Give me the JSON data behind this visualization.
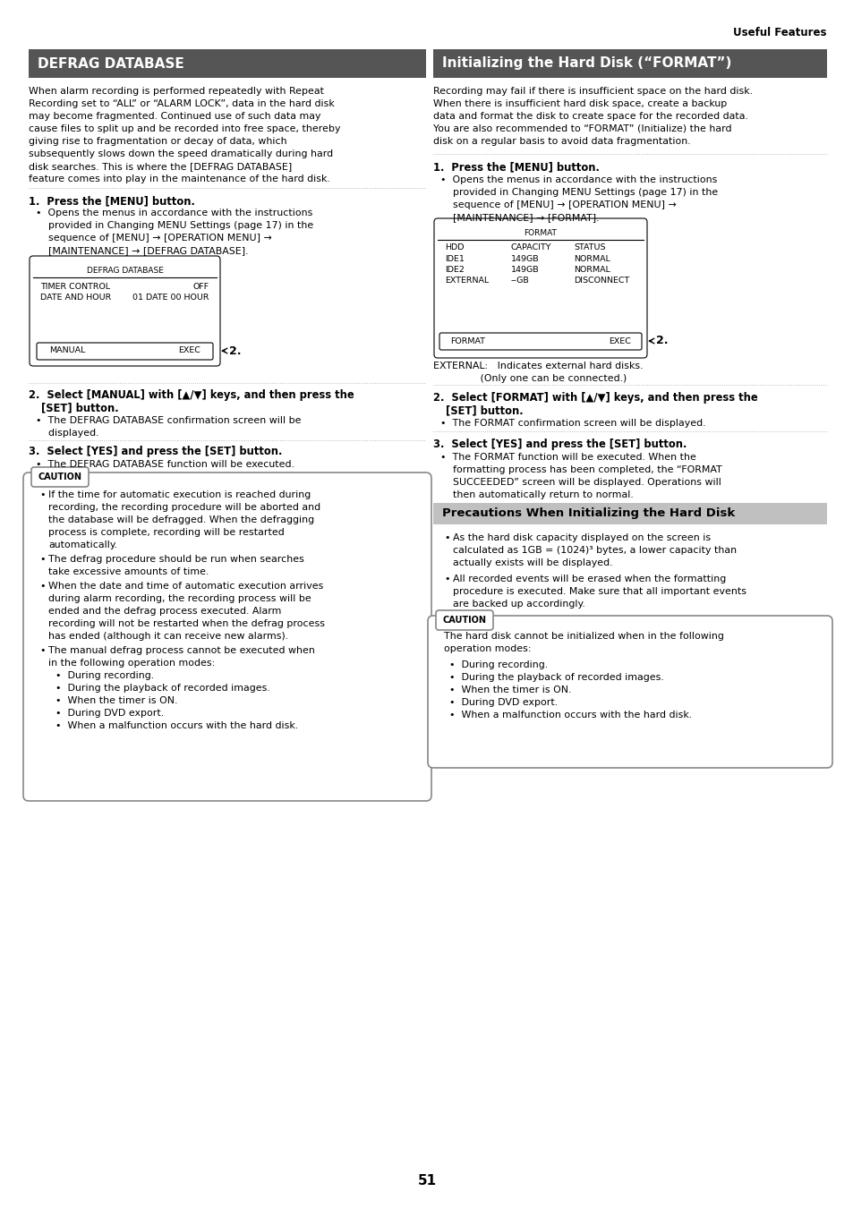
{
  "page_bg": "#ffffff",
  "header_text": "Useful Features",
  "page_number": "51",
  "left_header_bg": "#555555",
  "left_header_text": "DEFRAG DATABASE",
  "left_header_color": "#ffffff",
  "right_header_bg": "#555555",
  "right_header_text": "Initializing the Hard Disk (“FORMAT”)",
  "right_header_color": "#ffffff",
  "precautions_header_bg": "#c0c0c0",
  "precautions_header_text": "Precautions When Initializing the Hard Disk"
}
